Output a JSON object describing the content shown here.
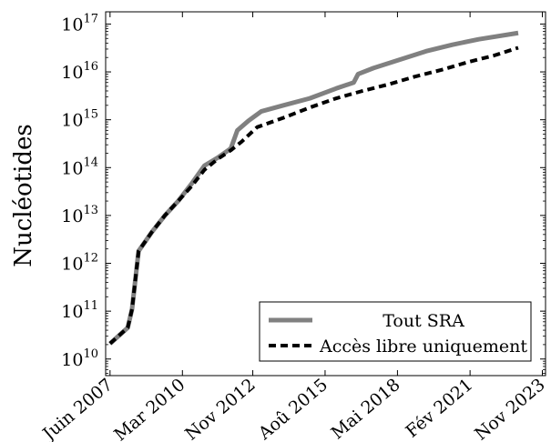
{
  "chart_data": {
    "type": "line",
    "ylabel": "Nucléotides",
    "xlabel": "",
    "y_scale": "log",
    "ylim": [
      4500000000.0,
      1.8e+17
    ],
    "xlim": [
      "2007-04-01",
      "2023-12-15"
    ],
    "grid": false,
    "legend_position": "bottom-right",
    "y_ticks": [
      {
        "value": 10000000000.0,
        "base": "10",
        "exp": "10"
      },
      {
        "value": 100000000000.0,
        "base": "10",
        "exp": "11"
      },
      {
        "value": 1000000000000.0,
        "base": "10",
        "exp": "12"
      },
      {
        "value": 10000000000000.0,
        "base": "10",
        "exp": "13"
      },
      {
        "value": 100000000000000.0,
        "base": "10",
        "exp": "14"
      },
      {
        "value": 1000000000000000.0,
        "base": "10",
        "exp": "15"
      },
      {
        "value": 1e+16,
        "base": "10",
        "exp": "16"
      },
      {
        "value": 1e+17,
        "base": "10",
        "exp": "17"
      }
    ],
    "x_ticks": [
      {
        "date": "2007-06-01",
        "label": "Juin 2007"
      },
      {
        "date": "2010-03-01",
        "label": "Mar 2010"
      },
      {
        "date": "2012-11-01",
        "label": "Nov 2012"
      },
      {
        "date": "2015-08-01",
        "label": "Aoû 2015"
      },
      {
        "date": "2018-05-01",
        "label": "Mai 2018"
      },
      {
        "date": "2021-02-01",
        "label": "Fév 2021"
      },
      {
        "date": "2023-11-01",
        "label": "Nov 2023"
      }
    ],
    "series": [
      {
        "name": "Tout SRA",
        "color": "#808080",
        "style": "solid",
        "points": [
          [
            "2007-06-01",
            21000000000.0
          ],
          [
            "2008-02-01",
            45000000000.0
          ],
          [
            "2008-04-01",
            110000000000.0
          ],
          [
            "2008-07-01",
            1800000000000.0
          ],
          [
            "2009-01-01",
            4500000000000.0
          ],
          [
            "2009-07-01",
            10000000000000.0
          ],
          [
            "2010-01-01",
            20000000000000.0
          ],
          [
            "2010-07-01",
            45000000000000.0
          ],
          [
            "2011-01-01",
            110000000000000.0
          ],
          [
            "2011-07-01",
            160000000000000.0
          ],
          [
            "2012-01-01",
            250000000000000.0
          ],
          [
            "2012-04-01",
            600000000000000.0
          ],
          [
            "2012-09-01",
            950000000000000.0
          ],
          [
            "2013-03-01",
            1500000000000000.0
          ],
          [
            "2014-01-01",
            2000000000000000.0
          ],
          [
            "2015-01-01",
            2800000000000000.0
          ],
          [
            "2016-01-01",
            4500000000000000.0
          ],
          [
            "2016-09-01",
            6000000000000000.0
          ],
          [
            "2016-11-01",
            9000000000000000.0
          ],
          [
            "2017-06-01",
            1.2e+16
          ],
          [
            "2018-06-01",
            1.8e+16
          ],
          [
            "2019-06-01",
            2.7e+16
          ],
          [
            "2020-06-01",
            3.7e+16
          ],
          [
            "2021-06-01",
            4.8e+16
          ],
          [
            "2022-12-01",
            6.5e+16
          ]
        ]
      },
      {
        "name": "Accès libre uniquement",
        "color": "#000000",
        "style": "dashed",
        "points": [
          [
            "2007-06-01",
            21000000000.0
          ],
          [
            "2008-02-01",
            45000000000.0
          ],
          [
            "2008-04-01",
            110000000000.0
          ],
          [
            "2008-07-01",
            1800000000000.0
          ],
          [
            "2009-01-01",
            4500000000000.0
          ],
          [
            "2009-07-01",
            10000000000000.0
          ],
          [
            "2010-01-01",
            20000000000000.0
          ],
          [
            "2010-07-01",
            40000000000000.0
          ],
          [
            "2011-01-01",
            90000000000000.0
          ],
          [
            "2011-07-01",
            150000000000000.0
          ],
          [
            "2012-01-01",
            230000000000000.0
          ],
          [
            "2012-06-01",
            350000000000000.0
          ],
          [
            "2013-01-01",
            700000000000000.0
          ],
          [
            "2014-01-01",
            1100000000000000.0
          ],
          [
            "2015-01-01",
            1800000000000000.0
          ],
          [
            "2016-01-01",
            2800000000000000.0
          ],
          [
            "2017-01-01",
            4000000000000000.0
          ],
          [
            "2018-01-01",
            5500000000000000.0
          ],
          [
            "2019-01-01",
            8000000000000000.0
          ],
          [
            "2020-01-01",
            1.1e+16
          ],
          [
            "2021-01-01",
            1.6e+16
          ],
          [
            "2022-01-01",
            2.2e+16
          ],
          [
            "2022-12-01",
            3.2e+16
          ]
        ]
      }
    ]
  }
}
